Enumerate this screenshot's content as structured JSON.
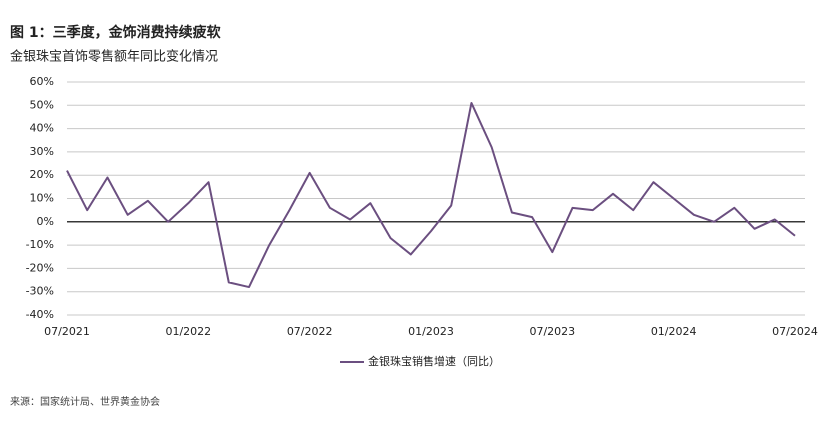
{
  "chart_data": {
    "type": "line",
    "title": "图 1：三季度，金饰消费持续疲软",
    "subtitle": "金银珠宝首饰零售额年同比变化情况",
    "source": "来源：国家统计局、世界黄金协会",
    "categories": [
      "07/2021",
      null,
      null,
      null,
      null,
      null,
      "01/2022",
      null,
      null,
      null,
      null,
      null,
      "07/2022",
      null,
      null,
      null,
      null,
      null,
      "01/2023",
      null,
      null,
      null,
      null,
      null,
      "07/2023",
      null,
      null,
      null,
      null,
      null,
      "01/2024",
      null,
      null,
      null,
      null,
      null,
      "07/2024"
    ],
    "series": [
      {
        "name": "金银珠宝销售增速（同比）",
        "color": "#6b4f80",
        "values": [
          22,
          5,
          19,
          3,
          9,
          0,
          8,
          17,
          -26,
          -28,
          -10,
          5,
          21,
          6,
          1,
          8,
          -7,
          -14,
          -4,
          7,
          51,
          32,
          4,
          2,
          -13,
          6,
          5,
          12,
          5,
          17,
          10,
          3,
          0,
          6,
          -3,
          1,
          -6
        ]
      }
    ],
    "ylim": [
      -40,
      60
    ],
    "yticks": [
      {
        "value": -40,
        "label": "-40%"
      },
      {
        "value": -30,
        "label": "-30%"
      },
      {
        "value": -20,
        "label": "-20%"
      },
      {
        "value": -10,
        "label": "-10%"
      },
      {
        "value": 0,
        "label": "0%"
      },
      {
        "value": 10,
        "label": "10%"
      },
      {
        "value": 20,
        "label": "20%"
      },
      {
        "value": 30,
        "label": "30%"
      },
      {
        "value": 40,
        "label": "40%"
      },
      {
        "value": 50,
        "label": "50%"
      },
      {
        "value": 60,
        "label": "60%"
      }
    ],
    "grid": true
  }
}
